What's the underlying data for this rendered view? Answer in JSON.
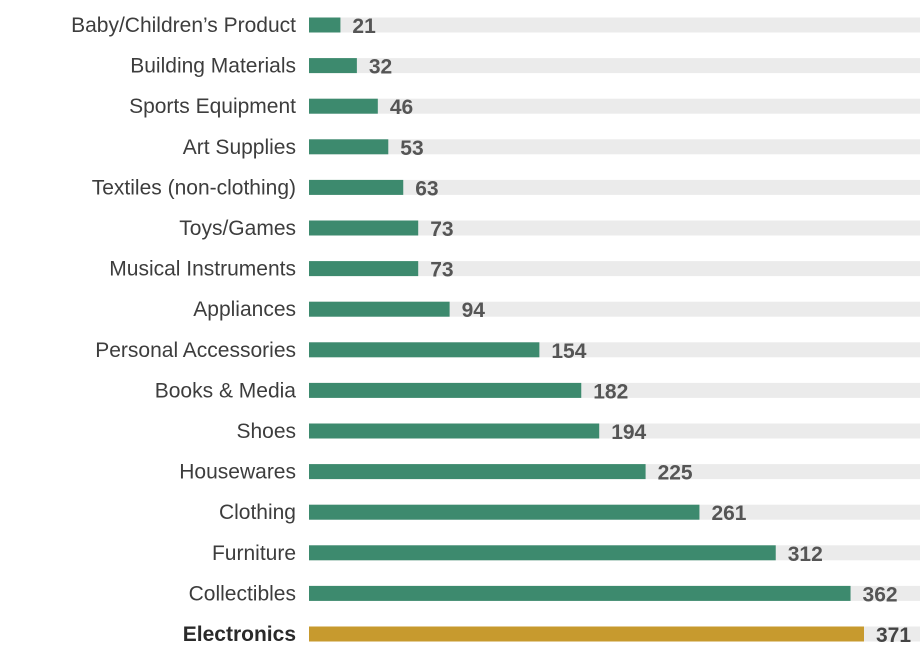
{
  "chart_data": {
    "type": "bar",
    "orientation": "horizontal",
    "title": "",
    "xlabel": "",
    "ylabel": "",
    "xlim": [
      0,
      371
    ],
    "grid": false,
    "legend": "none",
    "categories": [
      "Baby/Children’s Product",
      "Building Materials",
      "Sports Equipment",
      "Art Supplies",
      "Textiles (non-clothing)",
      "Toys/Games",
      "Musical Instruments",
      "Appliances",
      "Personal Accessories",
      "Books & Media",
      "Shoes",
      "Housewares",
      "Clothing",
      "Furniture",
      "Collectibles",
      "Electronics"
    ],
    "values": [
      21,
      32,
      46,
      53,
      63,
      73,
      73,
      94,
      154,
      182,
      194,
      225,
      261,
      312,
      362,
      371
    ],
    "highlight_category": "Electronics",
    "colors": {
      "bar": "#3d8a6e",
      "highlight_bar": "#c79a2e",
      "track": "#ebebeb"
    }
  }
}
